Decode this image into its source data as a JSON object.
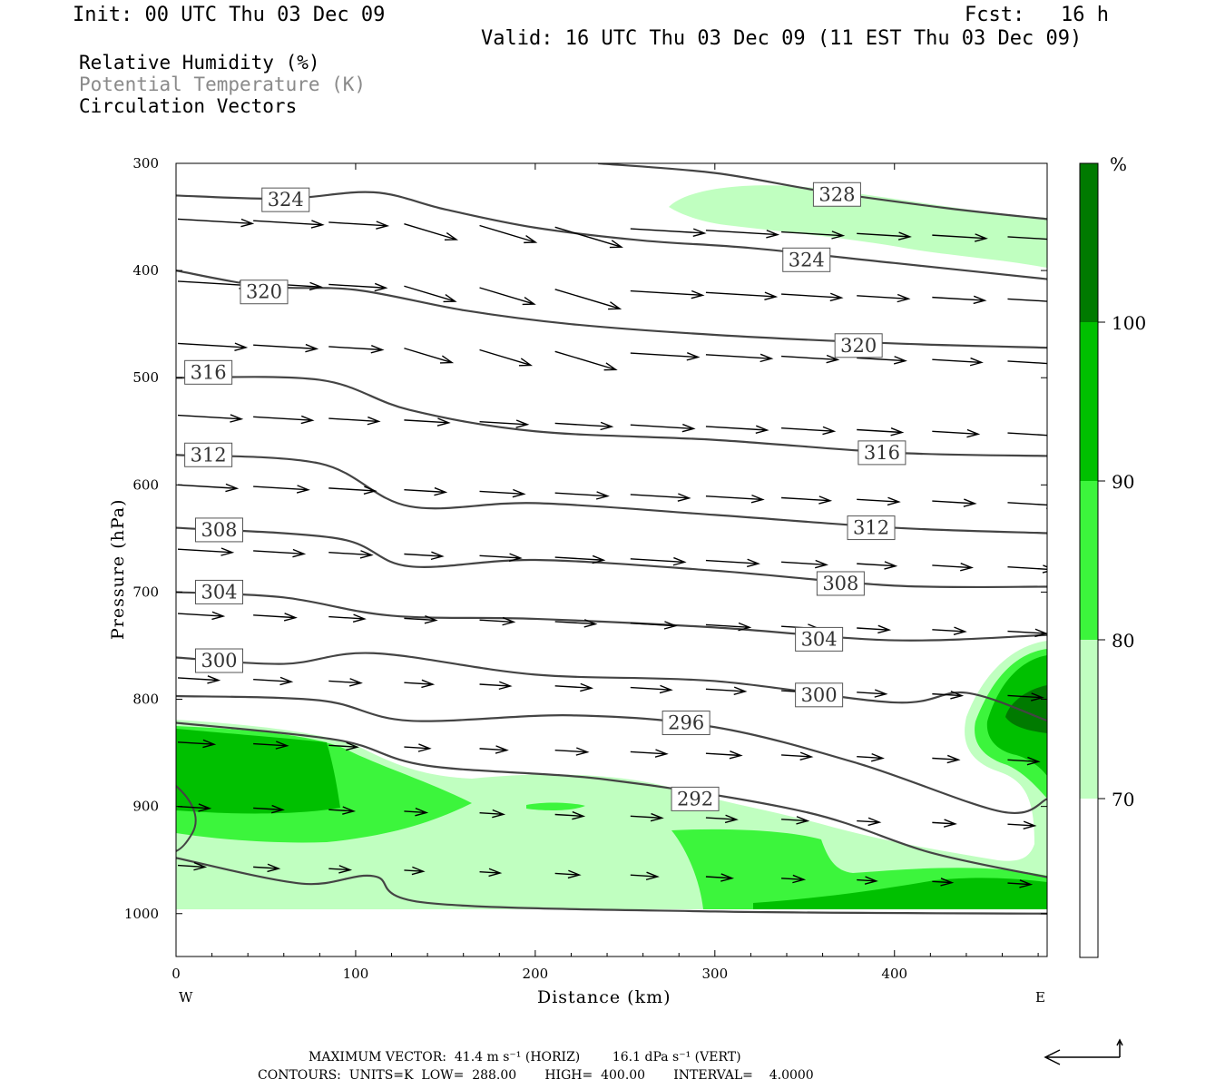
{
  "header": {
    "init": "Init: 00 UTC Thu 03 Dec 09",
    "fcst": "Fcst:   16 h",
    "valid": "Valid: 16 UTC Thu 03 Dec 09 (11 EST Thu 03 Dec 09)"
  },
  "titles": {
    "line1": "Relative Humidity (%)",
    "line2": "Potential Temperature (K)",
    "line3": "Circulation Vectors"
  },
  "footer": {
    "max_vector": "MAXIMUM VECTOR:  41.4 m s⁻¹ (HORIZ)        16.1 dPa s⁻¹ (VERT)",
    "contours": "CONTOURS:  UNITS=K  LOW=  288.00       HIGH=  400.00       INTERVAL=    4.0000"
  },
  "colors": {
    "rh70": "#c0ffc0",
    "rh80": "#3cf53c",
    "rh90": "#00c000",
    "rh100": "#007a00",
    "contour": "#444444",
    "vector": "#000000"
  },
  "chart_data": {
    "type": "cross-section",
    "xlabel": "Distance (km)",
    "ylabel": "Pressure (hPa)",
    "xlim": [
      0,
      485
    ],
    "ylim": [
      1040,
      300
    ],
    "x_ticks": [
      "0",
      "100",
      "200",
      "300",
      "400"
    ],
    "y_ticks": [
      "300",
      "400",
      "500",
      "600",
      "700",
      "800",
      "900",
      "1000"
    ],
    "x_end_labels": {
      "left": "W",
      "right": "E"
    },
    "colorbar": {
      "unit": "%",
      "levels": [
        "70",
        "80",
        "90",
        "100"
      ],
      "colors": [
        "#ffffff",
        "#c0ffc0",
        "#3cf53c",
        "#00c000",
        "#007a00"
      ]
    },
    "theta_contours": [
      {
        "label": "324",
        "label_at": [
          61,
          334
        ],
        "points": [
          [
            0,
            330
          ],
          [
            60,
            333
          ],
          [
            110,
            327
          ],
          [
            150,
            343
          ],
          [
            200,
            360
          ],
          [
            260,
            372
          ],
          [
            320,
            379
          ],
          [
            400,
            393
          ],
          [
            485,
            408
          ]
        ]
      },
      {
        "label": "328",
        "label_at": [
          368,
          329
        ],
        "points": [
          [
            235,
            300
          ],
          [
            300,
            309
          ],
          [
            360,
            326
          ],
          [
            430,
            342
          ],
          [
            485,
            352
          ]
        ]
      },
      {
        "label": "324",
        "label_at": [
          351,
          390
        ],
        "points": [
          [
            0,
            400
          ],
          [
            50,
            415
          ],
          [
            100,
            418
          ],
          [
            160,
            437
          ],
          [
            220,
            450
          ],
          [
            300,
            460
          ],
          [
            400,
            468
          ],
          [
            485,
            472
          ]
        ]
      },
      {
        "label": "320",
        "label_at": [
          49,
          420
        ],
        "points": [
          [
            0,
            400
          ],
          [
            50,
            415
          ],
          [
            100,
            418
          ],
          [
            160,
            437
          ],
          [
            220,
            450
          ],
          [
            300,
            460
          ],
          [
            400,
            468
          ],
          [
            485,
            472
          ]
        ]
      },
      {
        "label": "320",
        "label_at": [
          380,
          470
        ],
        "points": [
          [
            0,
            400
          ],
          [
            50,
            415
          ],
          [
            100,
            418
          ],
          [
            160,
            437
          ],
          [
            220,
            450
          ],
          [
            300,
            460
          ],
          [
            400,
            468
          ],
          [
            485,
            472
          ]
        ]
      },
      {
        "label": "316",
        "label_at": [
          18,
          495
        ],
        "points": [
          [
            0,
            500
          ],
          [
            80,
            502
          ],
          [
            130,
            530
          ],
          [
            200,
            550
          ],
          [
            300,
            558
          ],
          [
            400,
            570
          ],
          [
            485,
            573
          ]
        ]
      },
      {
        "label": "316",
        "label_at": [
          393,
          570
        ],
        "points": [
          [
            0,
            500
          ],
          [
            80,
            502
          ],
          [
            130,
            530
          ],
          [
            200,
            550
          ],
          [
            300,
            558
          ],
          [
            400,
            570
          ],
          [
            485,
            573
          ]
        ]
      },
      {
        "label": "312",
        "label_at": [
          18,
          572
        ],
        "points": [
          [
            0,
            572
          ],
          [
            80,
            580
          ],
          [
            130,
            620
          ],
          [
            200,
            617
          ],
          [
            300,
            628
          ],
          [
            400,
            640
          ],
          [
            485,
            645
          ]
        ]
      },
      {
        "label": "312",
        "label_at": [
          387,
          640
        ],
        "points": [
          [
            0,
            572
          ],
          [
            80,
            580
          ],
          [
            130,
            620
          ],
          [
            200,
            617
          ],
          [
            300,
            628
          ],
          [
            400,
            640
          ],
          [
            485,
            645
          ]
        ]
      },
      {
        "label": "308",
        "label_at": [
          24,
          642
        ],
        "points": [
          [
            0,
            640
          ],
          [
            90,
            650
          ],
          [
            130,
            676
          ],
          [
            200,
            670
          ],
          [
            300,
            680
          ],
          [
            400,
            694
          ],
          [
            485,
            695
          ]
        ]
      },
      {
        "label": "308",
        "label_at": [
          370,
          692
        ],
        "points": [
          [
            0,
            640
          ],
          [
            90,
            650
          ],
          [
            130,
            676
          ],
          [
            200,
            670
          ],
          [
            300,
            680
          ],
          [
            400,
            694
          ],
          [
            485,
            695
          ]
        ]
      },
      {
        "label": "304",
        "label_at": [
          24,
          700
        ],
        "points": [
          [
            0,
            700
          ],
          [
            60,
            705
          ],
          [
            120,
            722
          ],
          [
            200,
            725
          ],
          [
            300,
            733
          ],
          [
            400,
            745
          ],
          [
            485,
            740
          ]
        ]
      },
      {
        "label": "304",
        "label_at": [
          358,
          744
        ],
        "points": [
          [
            0,
            700
          ],
          [
            60,
            705
          ],
          [
            120,
            722
          ],
          [
            200,
            725
          ],
          [
            300,
            733
          ],
          [
            400,
            745
          ],
          [
            485,
            740
          ]
        ]
      },
      {
        "label": "300",
        "label_at": [
          24,
          764
        ],
        "points": [
          [
            0,
            761
          ],
          [
            60,
            767
          ],
          [
            110,
            757
          ],
          [
            200,
            777
          ],
          [
            300,
            783
          ],
          [
            400,
            803
          ],
          [
            440,
            794
          ],
          [
            485,
            820
          ]
        ]
      },
      {
        "label": "300",
        "label_at": [
          358,
          796
        ],
        "points": [
          [
            0,
            761
          ],
          [
            60,
            767
          ],
          [
            110,
            757
          ],
          [
            200,
            777
          ],
          [
            300,
            783
          ],
          [
            400,
            803
          ],
          [
            440,
            794
          ],
          [
            485,
            820
          ]
        ]
      },
      {
        "label": "296",
        "label_at": [
          284,
          822
        ],
        "points": [
          [
            0,
            797
          ],
          [
            80,
            801
          ],
          [
            130,
            820
          ],
          [
            220,
            815
          ],
          [
            300,
            826
          ],
          [
            380,
            860
          ],
          [
            460,
            905
          ],
          [
            485,
            893
          ]
        ]
      },
      {
        "label": "292",
        "label_at": [
          289,
          893
        ],
        "points": [
          [
            0,
            822
          ],
          [
            90,
            838
          ],
          [
            140,
            862
          ],
          [
            240,
            875
          ],
          [
            350,
            905
          ],
          [
            420,
            943
          ],
          [
            485,
            966
          ]
        ]
      },
      {
        "label": "",
        "label_at": null,
        "points": [
          [
            0,
            948
          ],
          [
            70,
            972
          ],
          [
            110,
            965
          ],
          [
            140,
            990
          ],
          [
            300,
            998
          ],
          [
            485,
            1000
          ]
        ]
      }
    ]
  }
}
